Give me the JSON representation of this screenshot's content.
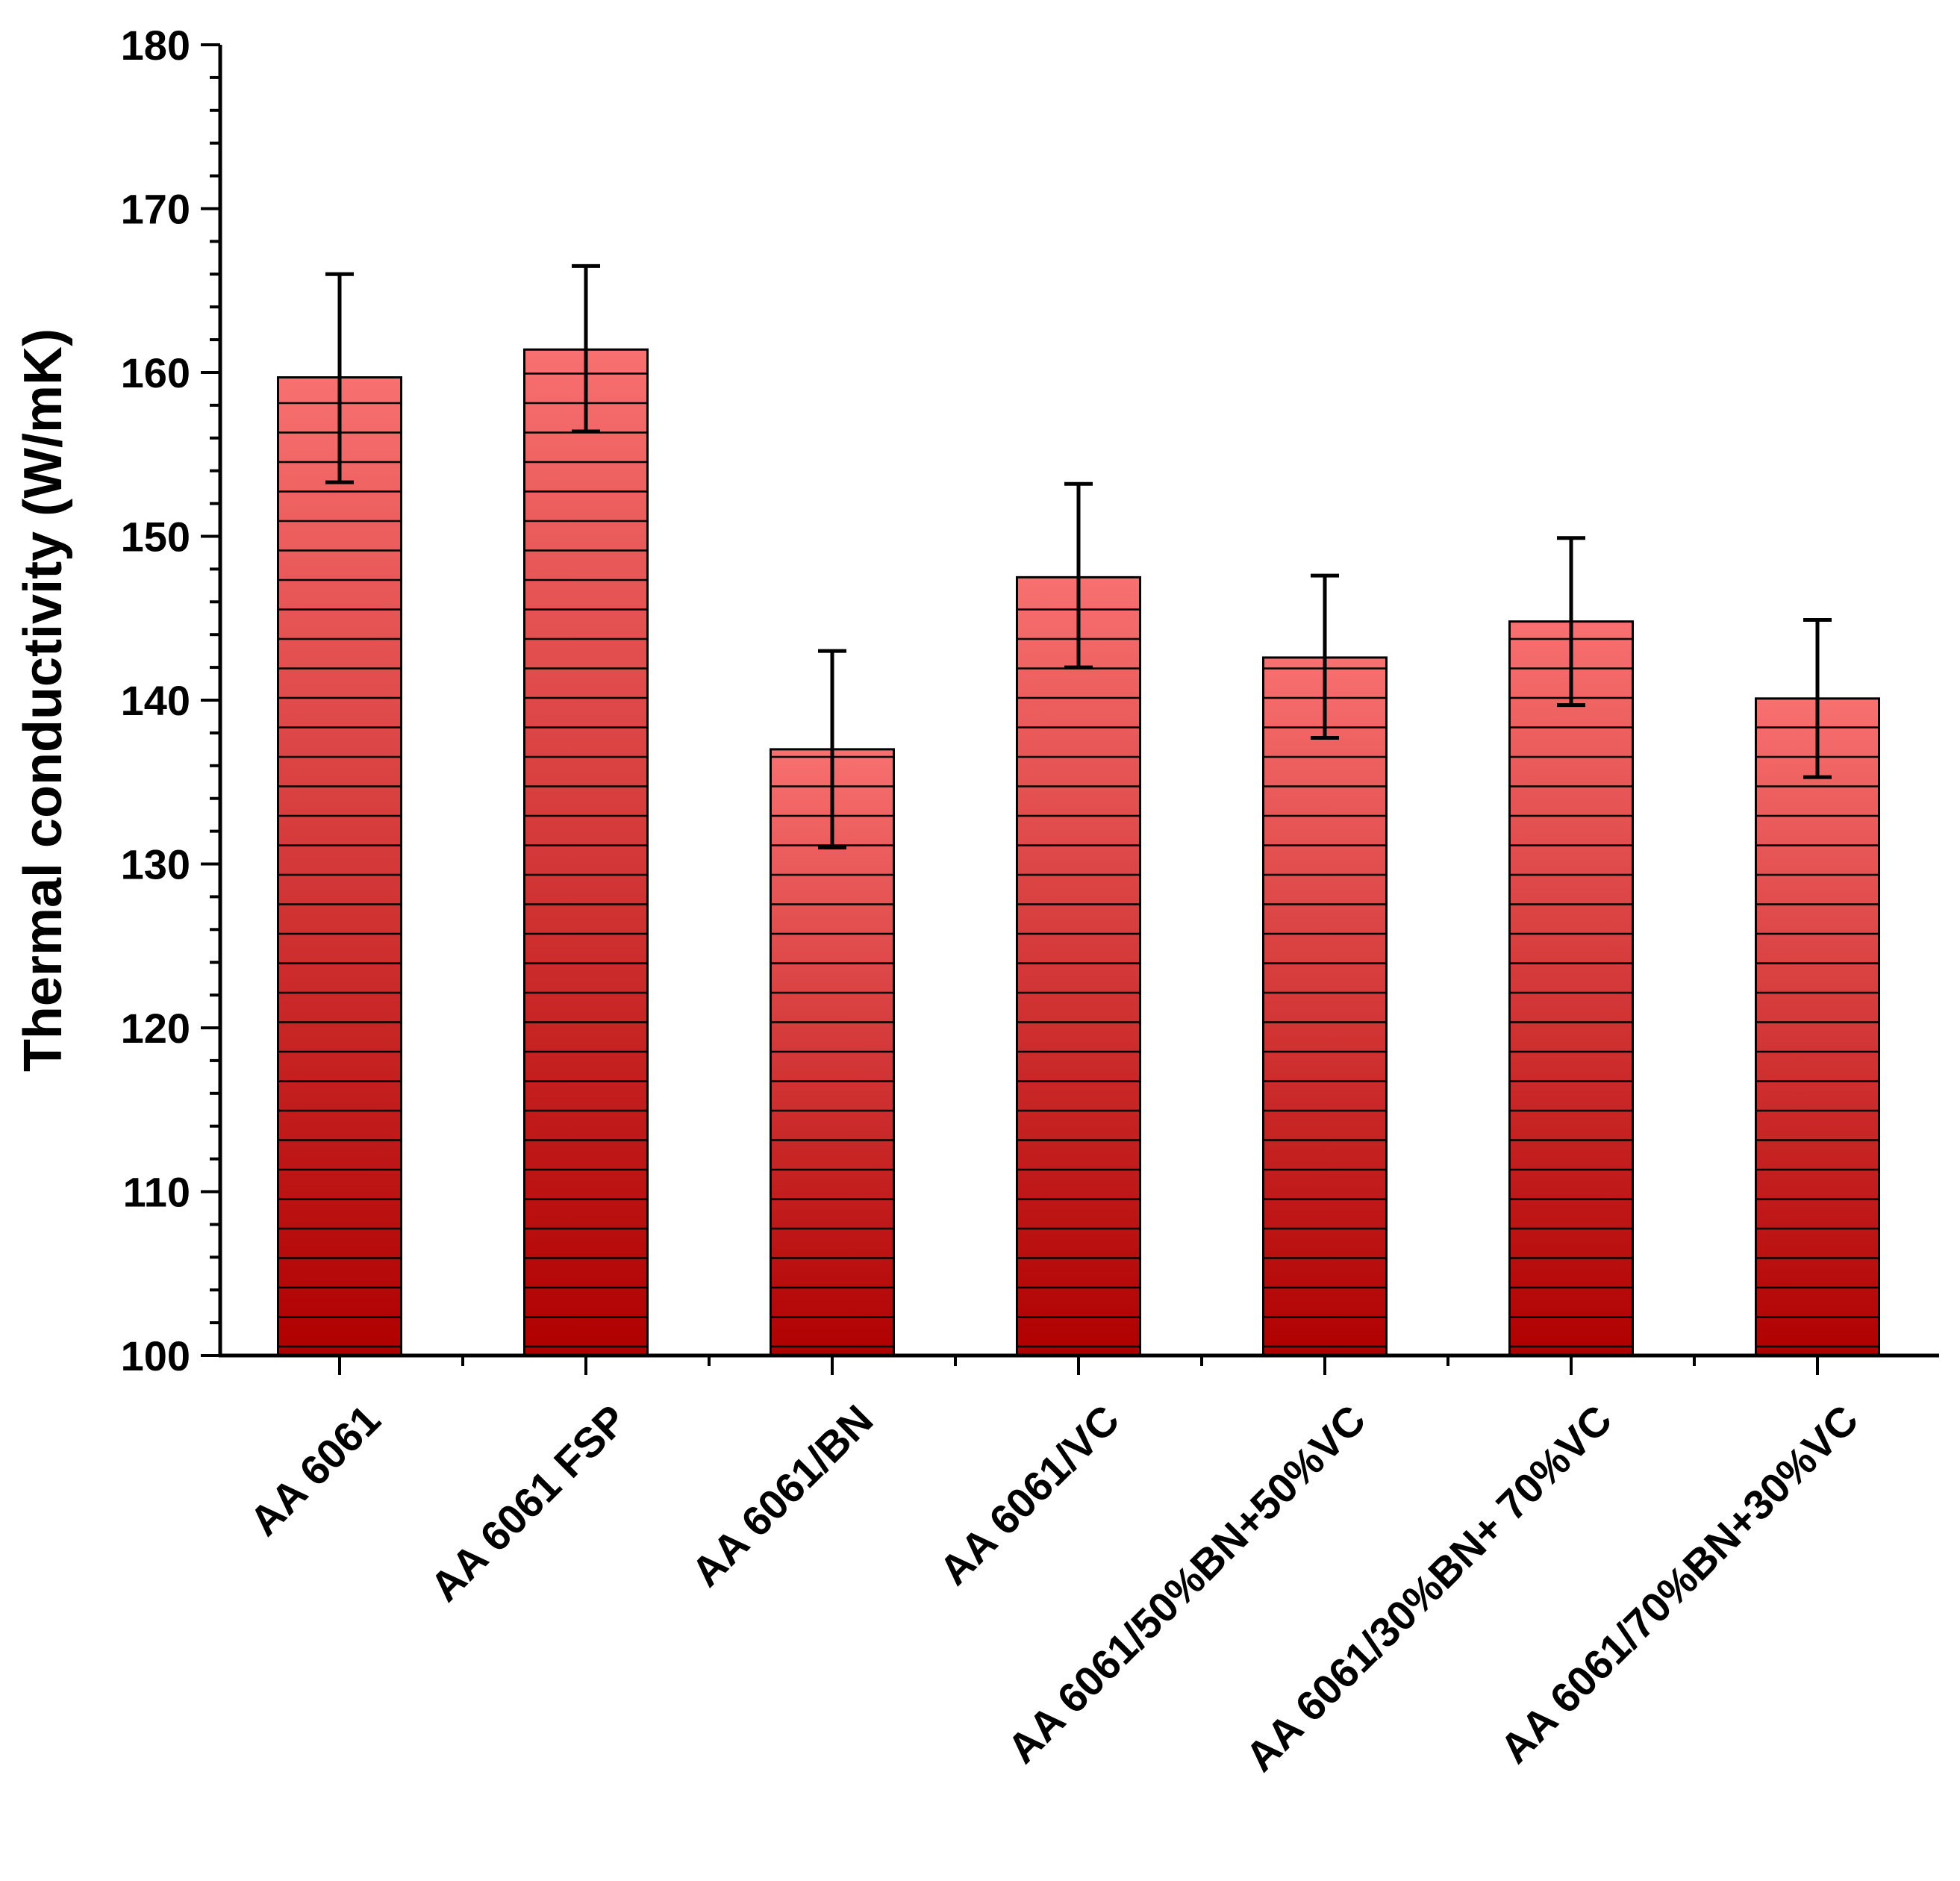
{
  "chart_data": {
    "type": "bar",
    "categories": [
      "AA 6061",
      "AA 6061 FSP",
      "AA 6061/BN",
      "AA 6061/VC",
      "AA 6061/50%BN+50%VC",
      "AA 6061/30%BN+ 70%VC",
      "AA 6061/70%BN+30%VC"
    ],
    "values": [
      159.7,
      161.4,
      137.0,
      147.5,
      142.6,
      144.8,
      140.1
    ],
    "error_low": [
      153.3,
      156.4,
      131.0,
      142.0,
      137.7,
      139.7,
      135.3
    ],
    "error_high": [
      166.0,
      166.5,
      143.0,
      153.2,
      147.6,
      149.9,
      144.9
    ],
    "ylabel": "Thermal conductivity (W/mK)",
    "xlabel": "",
    "ylim": [
      100,
      180
    ],
    "yticks": [
      100,
      110,
      120,
      130,
      140,
      150,
      160,
      170,
      180
    ],
    "ytick_labels": [
      "100",
      "110",
      "120",
      "130",
      "140",
      "150",
      "160",
      "170",
      "180"
    ],
    "grid": false,
    "bar_style": "vertical gradient from #f87070 (top) to #b00000 (bottom) with horizontal black hatch lines",
    "colors": {
      "bar_top": "#f87070",
      "bar_bottom": "#b00000",
      "axis": "#000000"
    }
  }
}
